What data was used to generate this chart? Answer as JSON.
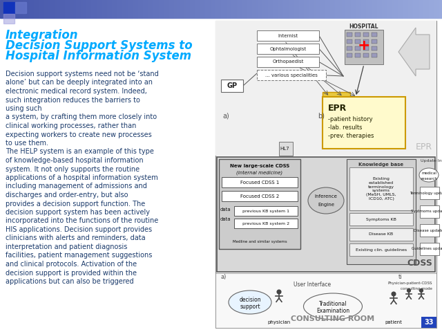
{
  "title_line1": "Integration",
  "title_line2": "Decision Support Systems to",
  "title_line3": "Hospital Information System",
  "title_color": "#00aaff",
  "body_color": "#1a3a6b",
  "bg_color": "#ffffff",
  "page_number": "33",
  "body_lines": [
    "Decision support systems need not be ‘stand",
    "alone’ but can be deeply integrated into an",
    "electronic medical record system. Indeed,",
    "such integration reduces the barriers to",
    "using such",
    "a system, by crafting them more closely into",
    "clinical working processes, rather than",
    "expecting workers to create new processes",
    "to use them.",
    "The HELP system is an example of this type",
    "of knowledge-based hospital information",
    "system. It not only supports the routine",
    "applications of a hospital information system",
    "including management of admissions and",
    "discharges and order-entry, but also",
    "provides a decision support function. The",
    "decision support system has been actively",
    "incorporated into the functions of the routine",
    "HIS applications. Decision support provides",
    "clinicians with alerts and reminders, data",
    "interpretation and patient diagnosis",
    "facilities, patient management suggestions",
    "and clinical protocols. Activation of the",
    "decision support is provided within the",
    "applications but can also be triggered"
  ]
}
